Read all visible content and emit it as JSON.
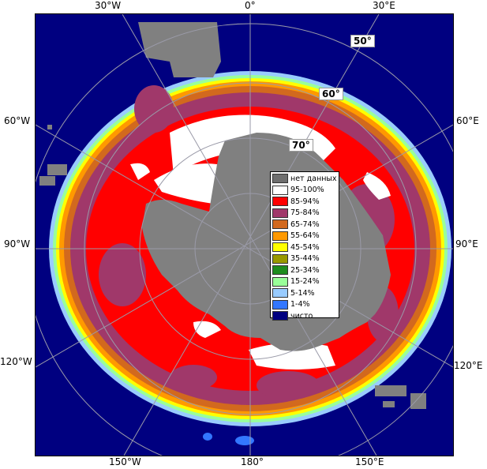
{
  "map": {
    "longitude_labels": {
      "top": [
        "30°W",
        "0°",
        "30°E"
      ],
      "bottom": [
        "150°W",
        "180°",
        "150°E"
      ],
      "left": [
        "60°W",
        "90°W",
        "120°W"
      ],
      "right": [
        "60°E",
        "90°E",
        "120°E"
      ]
    },
    "latitude_labels": [
      "50°",
      "60°",
      "70°"
    ],
    "colors": {
      "ocean_open": "#000080",
      "land_no_data": "#808080",
      "graticule": "#9a9aa8"
    }
  },
  "legend": {
    "items": [
      {
        "label": "нет данных",
        "color": "#6f6f6f"
      },
      {
        "label": "95-100%",
        "color": "#ffffff"
      },
      {
        "label": "85-94%",
        "color": "#ff0000"
      },
      {
        "label": "75-84%",
        "color": "#a0386a"
      },
      {
        "label": "65-74%",
        "color": "#d2691e"
      },
      {
        "label": "55-64%",
        "color": "#ff9900"
      },
      {
        "label": "45-54%",
        "color": "#ffff00"
      },
      {
        "label": "35-44%",
        "color": "#999900"
      },
      {
        "label": "25-34%",
        "color": "#1e8c1e"
      },
      {
        "label": "15-24%",
        "color": "#99ff99"
      },
      {
        "label": "5-14%",
        "color": "#99ccff"
      },
      {
        "label": "1-4%",
        "color": "#3377ff"
      },
      {
        "label": "чисто",
        "color": "#000080"
      }
    ]
  }
}
